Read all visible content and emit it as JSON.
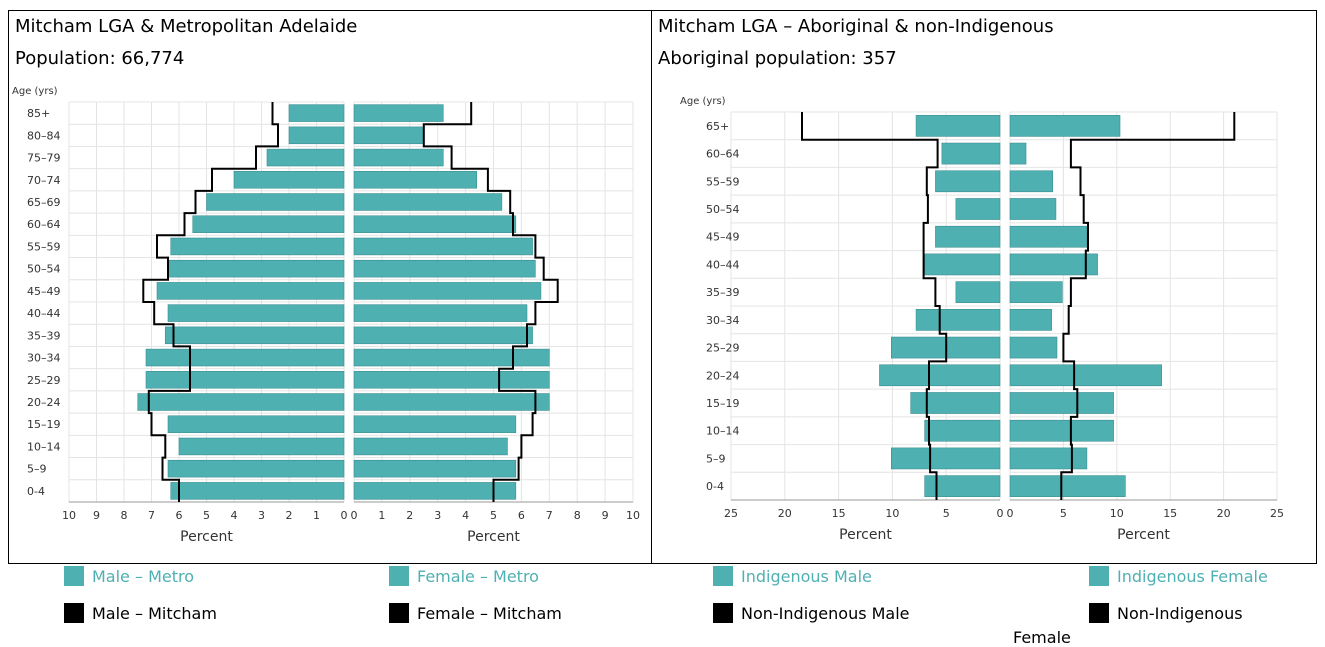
{
  "chart_data": [
    {
      "type": "bar",
      "title": "Mitcham LGA & Metropolitan Adelaide",
      "subtitle": "Population: 66,774",
      "ylabel": "Age (yrs)",
      "xlabel_left": "Percent",
      "xlabel_right": "Percent",
      "xlim": [
        0,
        10
      ],
      "ticks": [
        "10",
        "9",
        "8",
        "7",
        "6",
        "5",
        "4",
        "3",
        "2",
        "1",
        "0"
      ],
      "ticks_right": [
        "0",
        "1",
        "2",
        "3",
        "4",
        "5",
        "6",
        "7",
        "8",
        "9",
        "10"
      ],
      "grid": true,
      "categories": [
        "85+",
        "80–84",
        "75–79",
        "70–74",
        "65–69",
        "60–64",
        "55–59",
        "50–54",
        "45–49",
        "40–44",
        "35–39",
        "30–34",
        "25–29",
        "20–24",
        "15–19",
        "10–14",
        "5–9",
        "0-4"
      ],
      "series": [
        {
          "name": "Male – Metro",
          "kind": "bar",
          "side": "left",
          "values": [
            2.0,
            2.0,
            2.8,
            4.0,
            5.0,
            5.5,
            6.3,
            6.4,
            6.8,
            6.4,
            6.5,
            7.2,
            7.2,
            7.5,
            6.4,
            6.0,
            6.4,
            6.3
          ]
        },
        {
          "name": "Female – Metro",
          "kind": "bar",
          "side": "right",
          "values": [
            3.2,
            2.5,
            3.2,
            4.4,
            5.3,
            5.8,
            6.4,
            6.5,
            6.7,
            6.2,
            6.4,
            7.0,
            7.0,
            7.0,
            5.8,
            5.5,
            5.8,
            5.8
          ]
        },
        {
          "name": "Male – Mitcham",
          "kind": "line",
          "side": "left",
          "values": [
            2.6,
            2.4,
            3.2,
            4.8,
            5.4,
            5.8,
            6.8,
            6.4,
            7.3,
            6.9,
            6.2,
            5.6,
            5.6,
            7.1,
            7.0,
            6.5,
            6.6,
            6.0
          ]
        },
        {
          "name": "Female – Mitcham",
          "kind": "line",
          "side": "right",
          "values": [
            4.2,
            2.5,
            3.5,
            4.8,
            5.6,
            5.7,
            6.5,
            6.8,
            7.3,
            6.5,
            6.2,
            5.7,
            5.2,
            6.5,
            6.4,
            6.0,
            5.9,
            5.0
          ]
        }
      ],
      "bar_color": "#4fb0b2",
      "line_color": "#000000"
    },
    {
      "type": "bar",
      "title": "Mitcham LGA – Aboriginal & non-Indigenous",
      "subtitle": "Aboriginal population: 357",
      "ylabel": "Age (yrs)",
      "xlabel_left": "Percent",
      "xlabel_right": "Percent",
      "xlim": [
        0,
        25
      ],
      "ticks": [
        "25",
        "20",
        "15",
        "10",
        "5",
        "0"
      ],
      "ticks_right": [
        "0",
        "5",
        "10",
        "15",
        "20",
        "25"
      ],
      "grid": true,
      "categories": [
        "65+",
        "60–64",
        "55–59",
        "50–54",
        "45–49",
        "40–44",
        "35–39",
        "30–34",
        "25–29",
        "20–24",
        "15–19",
        "10–14",
        "5–9",
        "0-4"
      ],
      "series": [
        {
          "name": "Indigenous Male",
          "kind": "bar",
          "side": "left",
          "values": [
            7.8,
            5.4,
            6.0,
            4.1,
            6.0,
            7.0,
            4.1,
            7.8,
            10.1,
            11.2,
            8.3,
            7.0,
            10.1,
            7.0
          ]
        },
        {
          "name": "Indigenous Female",
          "kind": "bar",
          "side": "right",
          "values": [
            10.3,
            1.5,
            4.0,
            4.3,
            7.2,
            8.2,
            4.9,
            3.9,
            4.4,
            14.2,
            9.7,
            9.7,
            7.2,
            10.8
          ]
        },
        {
          "name": "Non-Indigenous Male",
          "kind": "line",
          "side": "left",
          "values": [
            18.4,
            5.8,
            6.8,
            6.7,
            7.1,
            7.1,
            6.0,
            5.6,
            5.0,
            6.6,
            6.8,
            6.6,
            6.5,
            5.9
          ]
        },
        {
          "name": "Non-Indigenous Female",
          "kind": "line",
          "side": "right",
          "values": [
            21.0,
            5.7,
            6.6,
            6.9,
            7.3,
            7.1,
            5.7,
            5.5,
            5.0,
            6.0,
            6.3,
            5.7,
            5.8,
            4.8
          ]
        }
      ],
      "bar_color": "#4fb0b2",
      "line_color": "#000000"
    }
  ],
  "legend": {
    "items": [
      {
        "label": "Male – Metro",
        "color": "#4fb0b2",
        "textcolor": "#4fb0b2"
      },
      {
        "label": "Female – Metro",
        "color": "#4fb0b2",
        "textcolor": "#4fb0b2"
      },
      {
        "label": "Indigenous Male",
        "color": "#4fb0b2",
        "textcolor": "#4fb0b2"
      },
      {
        "label": "Indigenous Female",
        "color": "#4fb0b2",
        "textcolor": "#4fb0b2"
      },
      {
        "label": "Male – Mitcham",
        "color": "#000000",
        "textcolor": "#000000"
      },
      {
        "label": "Female – Mitcham",
        "color": "#000000",
        "textcolor": "#000000"
      },
      {
        "label": "Non-Indigenous Male",
        "color": "#000000",
        "textcolor": "#000000"
      },
      {
        "label": "Non-Indigenous",
        "color": "#000000",
        "textcolor": "#000000"
      }
    ],
    "continuation": "Female"
  }
}
